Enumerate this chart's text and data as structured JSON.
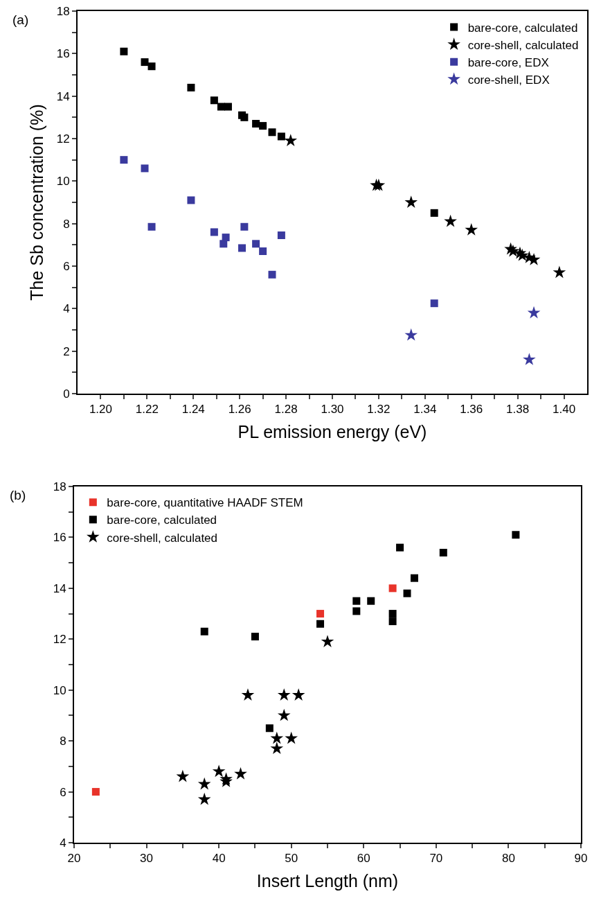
{
  "chart_data": [
    {
      "type": "scatter",
      "annotations": [
        "(a)"
      ],
      "xlabel": "PL emission energy (eV)",
      "ylabel": "The Sb concentration (%)",
      "xlim": [
        1.19,
        1.41
      ],
      "ylim": [
        0,
        18
      ],
      "xticks": [
        {
          "value": 1.2,
          "label": "1.20"
        },
        {
          "value": 1.21,
          "label": null
        },
        {
          "value": 1.22,
          "label": "1.22"
        },
        {
          "value": 1.23,
          "label": null
        },
        {
          "value": 1.24,
          "label": "1.24"
        },
        {
          "value": 1.25,
          "label": null
        },
        {
          "value": 1.26,
          "label": "1.26"
        },
        {
          "value": 1.27,
          "label": null
        },
        {
          "value": 1.28,
          "label": "1.28"
        },
        {
          "value": 1.29,
          "label": null
        },
        {
          "value": 1.3,
          "label": "1.30"
        },
        {
          "value": 1.31,
          "label": null
        },
        {
          "value": 1.32,
          "label": "1.32"
        },
        {
          "value": 1.33,
          "label": null
        },
        {
          "value": 1.34,
          "label": "1.34"
        },
        {
          "value": 1.35,
          "label": null
        },
        {
          "value": 1.36,
          "label": "1.36"
        },
        {
          "value": 1.37,
          "label": null
        },
        {
          "value": 1.38,
          "label": "1.38"
        },
        {
          "value": 1.39,
          "label": null
        },
        {
          "value": 1.4,
          "label": "1.40"
        }
      ],
      "yticks": [
        0,
        {
          "value": 1,
          "label": null
        },
        2,
        {
          "value": 3,
          "label": null
        },
        4,
        {
          "value": 5,
          "label": null
        },
        6,
        {
          "value": 7,
          "label": null
        },
        8,
        {
          "value": 9,
          "label": null
        },
        10,
        {
          "value": 11,
          "label": null
        },
        12,
        {
          "value": 13,
          "label": null
        },
        14,
        {
          "value": 15,
          "label": null
        },
        16,
        {
          "value": 17,
          "label": null
        },
        18
      ],
      "grid": false,
      "legend": "top right",
      "series": [
        {
          "name": "bare-core, calculated",
          "color": "#000000",
          "marker": "square",
          "x": [
            1.21,
            1.219,
            1.222,
            1.239,
            1.249,
            1.252,
            1.255,
            1.261,
            1.262,
            1.267,
            1.27,
            1.274,
            1.278,
            1.344
          ],
          "values": [
            16.1,
            15.6,
            15.4,
            14.4,
            13.8,
            13.5,
            13.5,
            13.1,
            13.0,
            12.7,
            12.6,
            12.3,
            12.1,
            8.5
          ]
        },
        {
          "name": "core-shell, calculated",
          "color": "#000000",
          "marker": "star",
          "x": [
            1.282,
            1.319,
            1.32,
            1.334,
            1.351,
            1.36,
            1.377,
            1.378,
            1.381,
            1.382,
            1.385,
            1.387,
            1.398
          ],
          "values": [
            11.9,
            9.8,
            9.8,
            9.0,
            8.1,
            7.7,
            6.8,
            6.7,
            6.6,
            6.5,
            6.4,
            6.3,
            5.7
          ]
        },
        {
          "name": "bare-core, EDX",
          "color": "#3a3a9e",
          "marker": "square",
          "x": [
            1.21,
            1.219,
            1.222,
            1.239,
            1.249,
            1.253,
            1.254,
            1.261,
            1.262,
            1.267,
            1.27,
            1.274,
            1.278,
            1.344
          ],
          "values": [
            11.0,
            10.6,
            7.85,
            9.1,
            7.6,
            7.05,
            7.35,
            6.85,
            7.85,
            7.05,
            6.7,
            5.6,
            7.45,
            4.25
          ]
        },
        {
          "name": "core-shell, EDX",
          "color": "#3a3a9e",
          "marker": "star",
          "x": [
            1.334,
            1.385,
            1.387
          ],
          "values": [
            2.75,
            1.6,
            3.8
          ]
        }
      ]
    },
    {
      "type": "scatter",
      "annotations": [
        "(b)"
      ],
      "xlabel": "Insert Length (nm)",
      "xlim": [
        20,
        90
      ],
      "ylim": [
        4,
        18
      ],
      "xticks": [
        20,
        {
          "value": 25,
          "label": null
        },
        30,
        {
          "value": 35,
          "label": null
        },
        40,
        {
          "value": 45,
          "label": null
        },
        50,
        {
          "value": 55,
          "label": null
        },
        60,
        {
          "value": 65,
          "label": null
        },
        70,
        {
          "value": 75,
          "label": null
        },
        80,
        {
          "value": 85,
          "label": null
        },
        90
      ],
      "yticks": [
        4,
        {
          "value": 5,
          "label": null
        },
        6,
        {
          "value": 7,
          "label": null
        },
        8,
        {
          "value": 9,
          "label": null
        },
        10,
        {
          "value": 11,
          "label": null
        },
        12,
        {
          "value": 13,
          "label": null
        },
        14,
        {
          "value": 15,
          "label": null
        },
        16,
        {
          "value": 17,
          "label": null
        },
        18
      ],
      "grid": false,
      "legend": "top left",
      "series": [
        {
          "name": "bare-core, quantitative HAADF STEM",
          "color": "#e8332a",
          "marker": "square",
          "x": [
            23,
            54,
            64
          ],
          "values": [
            6,
            13,
            14
          ]
        },
        {
          "name": "bare-core, calculated",
          "color": "#000000",
          "marker": "square",
          "x": [
            38,
            45,
            47,
            54,
            59,
            59,
            61,
            64,
            64,
            65,
            66,
            67,
            71,
            81
          ],
          "values": [
            12.3,
            12.1,
            8.5,
            12.6,
            13.5,
            13.1,
            13.5,
            13.0,
            12.7,
            15.6,
            13.8,
            14.4,
            15.4,
            16.1
          ]
        },
        {
          "name": "core-shell, calculated",
          "color": "#000000",
          "marker": "star",
          "x": [
            35,
            38,
            38,
            40,
            41,
            41,
            43,
            44,
            48,
            48,
            49,
            49,
            50,
            51,
            55
          ],
          "values": [
            6.6,
            6.3,
            5.7,
            6.8,
            6.5,
            6.4,
            6.7,
            9.8,
            8.1,
            7.7,
            9.8,
            9.0,
            8.1,
            9.8,
            11.9
          ]
        }
      ]
    }
  ]
}
